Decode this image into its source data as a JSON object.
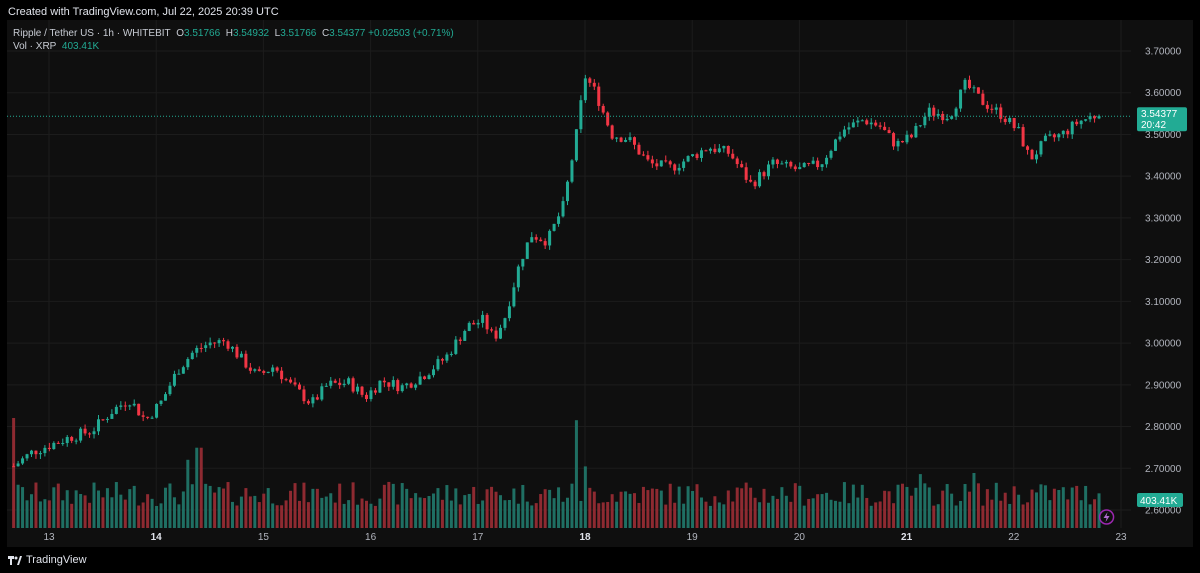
{
  "header": {
    "created_text": "Created with TradingView.com, Jul 22, 2025 20:39 UTC"
  },
  "legend": {
    "symbol": "Ripple / Tether US · 1h · WHITEBIT",
    "o_label": "O",
    "o_value": "3.51766",
    "h_label": "H",
    "h_value": "3.54932",
    "l_label": "L",
    "l_value": "3.51766",
    "c_label": "C",
    "c_value": "3.54377",
    "change": "+0.02503 (+0.71%)",
    "vol_label": "Vol · XRP",
    "vol_value": "403.41K"
  },
  "price_tag": {
    "price": "3.54377",
    "countdown": "20:42"
  },
  "volume_tag": {
    "value": "403.41K"
  },
  "footer": {
    "brand": "TradingView"
  },
  "colors": {
    "up": "#22ab94",
    "down": "#f23645",
    "up_vol": "#1f6f63",
    "down_vol": "#8e2a31",
    "grid": "#1c1c1c",
    "axis_text": "#b2b5be"
  },
  "chart_data": {
    "type": "candlestick",
    "title": "Ripple / Tether US · 1h · WHITEBIT",
    "y_ticks": [
      "3.70000",
      "3.60000",
      "3.50000",
      "3.40000",
      "3.30000",
      "3.20000",
      "3.10000",
      "3.00000",
      "2.90000",
      "2.80000",
      "2.70000",
      "2.60000"
    ],
    "x_ticks": [
      "13",
      "14",
      "15",
      "16",
      "17",
      "18",
      "19",
      "20",
      "21",
      "22",
      "23"
    ],
    "bold_x_ticks": [
      "14",
      "18",
      "21"
    ],
    "ylim": [
      2.58,
      3.72
    ],
    "x_range_days": [
      12.67,
      23.2
    ],
    "last_price": 3.54377,
    "close_anchors": [
      [
        12.67,
        2.705
      ],
      [
        12.85,
        2.74
      ],
      [
        13.0,
        2.755
      ],
      [
        13.2,
        2.775
      ],
      [
        13.4,
        2.79
      ],
      [
        13.6,
        2.84
      ],
      [
        13.75,
        2.865
      ],
      [
        13.9,
        2.815
      ],
      [
        14.05,
        2.86
      ],
      [
        14.2,
        2.935
      ],
      [
        14.35,
        2.98
      ],
      [
        14.5,
        3.0
      ],
      [
        14.65,
        3.005
      ],
      [
        14.8,
        2.96
      ],
      [
        14.95,
        2.92
      ],
      [
        15.1,
        2.945
      ],
      [
        15.25,
        2.9
      ],
      [
        15.45,
        2.855
      ],
      [
        15.6,
        2.9
      ],
      [
        15.8,
        2.905
      ],
      [
        15.95,
        2.87
      ],
      [
        16.1,
        2.91
      ],
      [
        16.3,
        2.895
      ],
      [
        16.5,
        2.925
      ],
      [
        16.7,
        2.965
      ],
      [
        16.9,
        3.04
      ],
      [
        17.05,
        3.055
      ],
      [
        17.15,
        3.01
      ],
      [
        17.25,
        3.06
      ],
      [
        17.4,
        3.2
      ],
      [
        17.5,
        3.26
      ],
      [
        17.65,
        3.245
      ],
      [
        17.8,
        3.33
      ],
      [
        17.92,
        3.5
      ],
      [
        18.0,
        3.64
      ],
      [
        18.1,
        3.6
      ],
      [
        18.25,
        3.5
      ],
      [
        18.4,
        3.49
      ],
      [
        18.6,
        3.43
      ],
      [
        18.8,
        3.42
      ],
      [
        18.95,
        3.44
      ],
      [
        19.15,
        3.47
      ],
      [
        19.35,
        3.455
      ],
      [
        19.55,
        3.38
      ],
      [
        19.75,
        3.43
      ],
      [
        20.0,
        3.415
      ],
      [
        20.2,
        3.43
      ],
      [
        20.4,
        3.51
      ],
      [
        20.6,
        3.535
      ],
      [
        20.75,
        3.52
      ],
      [
        20.9,
        3.475
      ],
      [
        21.05,
        3.495
      ],
      [
        21.2,
        3.555
      ],
      [
        21.4,
        3.545
      ],
      [
        21.55,
        3.62
      ],
      [
        21.7,
        3.58
      ],
      [
        21.9,
        3.545
      ],
      [
        22.05,
        3.505
      ],
      [
        22.15,
        3.44
      ],
      [
        22.3,
        3.485
      ],
      [
        22.45,
        3.5
      ],
      [
        22.6,
        3.53
      ],
      [
        22.75,
        3.545
      ],
      [
        22.8,
        3.54377
      ]
    ],
    "volume_spikes": [
      [
        12.68,
        1.0
      ],
      [
        14.3,
        0.62
      ],
      [
        14.4,
        0.73
      ],
      [
        17.93,
        0.98
      ],
      [
        18.0,
        0.56
      ],
      [
        21.12,
        0.49
      ],
      [
        21.63,
        0.5
      ]
    ],
    "volume_unit": "XRP"
  }
}
